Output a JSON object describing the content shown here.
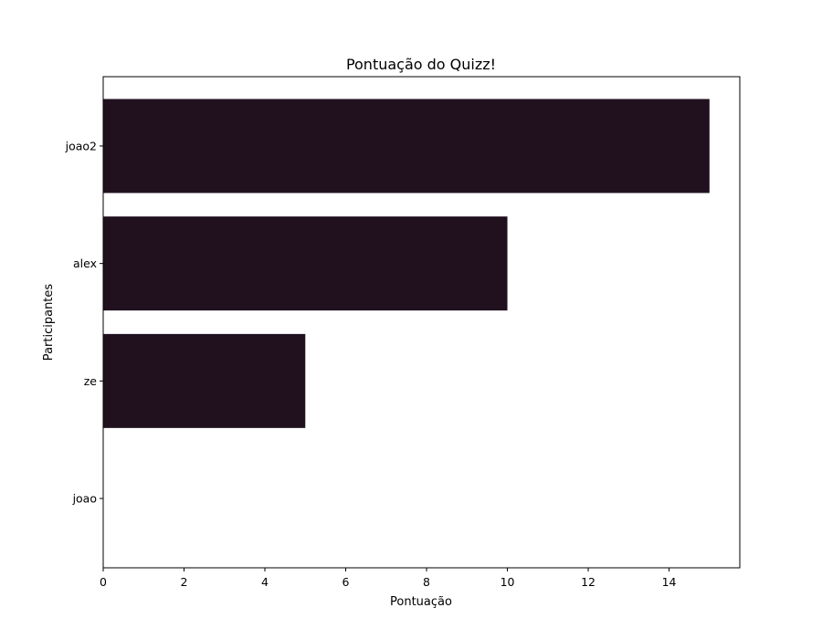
{
  "chart_data": {
    "type": "bar",
    "orientation": "horizontal",
    "title": "Pontuação do Quizz!",
    "xlabel": "Pontuação",
    "ylabel": "Participantes",
    "categories": [
      "joao",
      "ze",
      "alex",
      "joao2"
    ],
    "values": [
      0,
      5,
      10,
      15
    ],
    "xlim": [
      0,
      15.75
    ],
    "xticks": [
      0,
      2,
      4,
      6,
      8,
      10,
      12,
      14
    ],
    "grid": false,
    "bar_color": "#21111f"
  }
}
